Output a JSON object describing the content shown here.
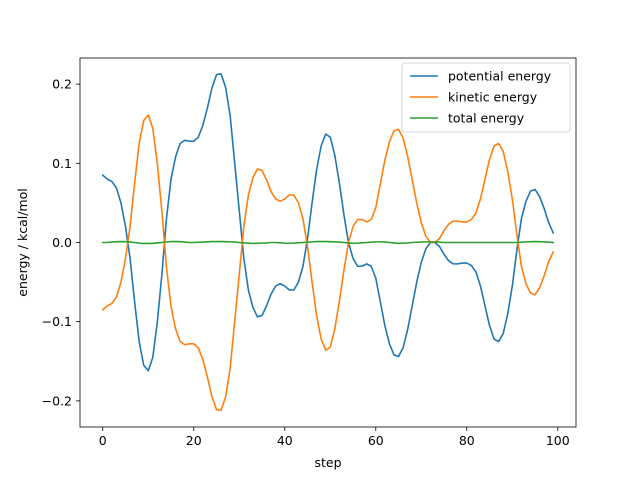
{
  "chart_data": {
    "type": "line",
    "title": "",
    "xlabel": "step",
    "ylabel": "energy / kcal/mol",
    "xlim": [
      -5,
      104
    ],
    "ylim": [
      -0.233,
      0.233
    ],
    "xticks": [
      0,
      20,
      40,
      60,
      80,
      100
    ],
    "yticks": [
      -0.2,
      -0.1,
      0.0,
      0.1,
      0.2
    ],
    "xtick_labels": [
      "0",
      "20",
      "40",
      "60",
      "80",
      "100"
    ],
    "ytick_labels": [
      "−0.2",
      "−0.1",
      "0.0",
      "0.1",
      "0.2"
    ],
    "grid": false,
    "legend_position": "top-right",
    "series": [
      {
        "name": "potential energy",
        "color": "#1f77b4",
        "x": [
          0,
          1,
          2,
          3,
          4,
          5,
          6,
          7,
          8,
          9,
          10,
          11,
          12,
          13,
          14,
          15,
          16,
          17,
          18,
          19,
          20,
          21,
          22,
          23,
          24,
          25,
          26,
          27,
          28,
          29,
          30,
          31,
          32,
          33,
          34,
          35,
          36,
          37,
          38,
          39,
          40,
          41,
          42,
          43,
          44,
          45,
          46,
          47,
          48,
          49,
          50,
          51,
          52,
          53,
          54,
          55,
          56,
          57,
          58,
          59,
          60,
          61,
          62,
          63,
          64,
          65,
          66,
          67,
          68,
          69,
          70,
          71,
          72,
          73,
          74,
          75,
          76,
          77,
          78,
          79,
          80,
          81,
          82,
          83,
          84,
          85,
          86,
          87,
          88,
          89,
          90,
          91,
          92,
          93,
          94,
          95,
          96,
          97,
          98,
          99
        ],
        "y": [
          0.085,
          0.08,
          0.077,
          0.069,
          0.05,
          0.02,
          -0.02,
          -0.075,
          -0.125,
          -0.155,
          -0.162,
          -0.145,
          -0.1,
          -0.04,
          0.03,
          0.08,
          0.108,
          0.125,
          0.129,
          0.128,
          0.128,
          0.133,
          0.148,
          0.17,
          0.195,
          0.212,
          0.213,
          0.196,
          0.16,
          0.1,
          0.04,
          -0.02,
          -0.06,
          -0.082,
          -0.094,
          -0.092,
          -0.08,
          -0.065,
          -0.055,
          -0.052,
          -0.055,
          -0.06,
          -0.06,
          -0.05,
          -0.03,
          0.005,
          0.05,
          0.092,
          0.122,
          0.137,
          0.133,
          0.11,
          0.075,
          0.035,
          0.0,
          -0.02,
          -0.03,
          -0.03,
          -0.027,
          -0.03,
          -0.045,
          -0.075,
          -0.105,
          -0.128,
          -0.142,
          -0.144,
          -0.133,
          -0.11,
          -0.08,
          -0.05,
          -0.025,
          -0.008,
          0.0,
          0.0,
          -0.005,
          -0.015,
          -0.023,
          -0.027,
          -0.027,
          -0.026,
          -0.026,
          -0.029,
          -0.037,
          -0.055,
          -0.08,
          -0.105,
          -0.122,
          -0.125,
          -0.115,
          -0.09,
          -0.055,
          -0.01,
          0.03,
          0.052,
          0.065,
          0.067,
          0.058,
          0.043,
          0.025,
          0.012
        ]
      },
      {
        "name": "kinetic energy",
        "color": "#ff7f0e",
        "x": [
          0,
          1,
          2,
          3,
          4,
          5,
          6,
          7,
          8,
          9,
          10,
          11,
          12,
          13,
          14,
          15,
          16,
          17,
          18,
          19,
          20,
          21,
          22,
          23,
          24,
          25,
          26,
          27,
          28,
          29,
          30,
          31,
          32,
          33,
          34,
          35,
          36,
          37,
          38,
          39,
          40,
          41,
          42,
          43,
          44,
          45,
          46,
          47,
          48,
          49,
          50,
          51,
          52,
          53,
          54,
          55,
          56,
          57,
          58,
          59,
          60,
          61,
          62,
          63,
          64,
          65,
          66,
          67,
          68,
          69,
          70,
          71,
          72,
          73,
          74,
          75,
          76,
          77,
          78,
          79,
          80,
          81,
          82,
          83,
          84,
          85,
          86,
          87,
          88,
          89,
          90,
          91,
          92,
          93,
          94,
          95,
          96,
          97,
          98,
          99
        ],
        "y": [
          -0.085,
          -0.08,
          -0.077,
          -0.069,
          -0.05,
          -0.02,
          0.02,
          0.075,
          0.125,
          0.154,
          0.161,
          0.144,
          0.099,
          0.039,
          -0.031,
          -0.081,
          -0.109,
          -0.125,
          -0.129,
          -0.128,
          -0.128,
          -0.133,
          -0.148,
          -0.17,
          -0.195,
          -0.211,
          -0.212,
          -0.195,
          -0.159,
          -0.099,
          -0.04,
          0.02,
          0.06,
          0.082,
          0.093,
          0.091,
          0.079,
          0.064,
          0.055,
          0.052,
          0.055,
          0.06,
          0.06,
          0.05,
          0.03,
          -0.005,
          -0.05,
          -0.092,
          -0.122,
          -0.136,
          -0.132,
          -0.109,
          -0.074,
          -0.035,
          0.0,
          0.02,
          0.029,
          0.029,
          0.026,
          0.029,
          0.044,
          0.074,
          0.104,
          0.127,
          0.141,
          0.143,
          0.132,
          0.109,
          0.079,
          0.05,
          0.025,
          0.008,
          0.0,
          0.0,
          0.005,
          0.015,
          0.023,
          0.027,
          0.027,
          0.026,
          0.026,
          0.029,
          0.037,
          0.055,
          0.08,
          0.105,
          0.122,
          0.125,
          0.115,
          0.09,
          0.055,
          0.01,
          -0.03,
          -0.052,
          -0.064,
          -0.066,
          -0.057,
          -0.042,
          -0.024,
          -0.012
        ]
      },
      {
        "name": "total energy",
        "color": "#2ca02c",
        "x": [
          0,
          1,
          2,
          3,
          4,
          5,
          6,
          7,
          8,
          9,
          10,
          11,
          12,
          13,
          14,
          15,
          16,
          17,
          18,
          19,
          20,
          21,
          22,
          23,
          24,
          25,
          26,
          27,
          28,
          29,
          30,
          31,
          32,
          33,
          34,
          35,
          36,
          37,
          38,
          39,
          40,
          41,
          42,
          43,
          44,
          45,
          46,
          47,
          48,
          49,
          50,
          51,
          52,
          53,
          54,
          55,
          56,
          57,
          58,
          59,
          60,
          61,
          62,
          63,
          64,
          65,
          66,
          67,
          68,
          69,
          70,
          71,
          72,
          73,
          74,
          75,
          76,
          77,
          78,
          79,
          80,
          81,
          82,
          83,
          84,
          85,
          86,
          87,
          88,
          89,
          90,
          91,
          92,
          93,
          94,
          95,
          96,
          97,
          98,
          99
        ],
        "y": [
          0.0,
          0.0,
          0.0005,
          0.001,
          0.0012,
          0.001,
          0.0005,
          0.0,
          -0.0008,
          -0.0012,
          -0.0012,
          -0.001,
          -0.0005,
          0.0,
          0.0008,
          0.0012,
          0.0012,
          0.001,
          0.0005,
          0.0,
          0.0,
          0.0003,
          0.0006,
          0.0009,
          0.0012,
          0.0012,
          0.0012,
          0.001,
          0.0008,
          0.0005,
          0.0,
          -0.0005,
          -0.0009,
          -0.0012,
          -0.001,
          -0.0008,
          -0.0005,
          0.0,
          0.0,
          -0.0004,
          -0.0008,
          -0.001,
          -0.0008,
          -0.0004,
          0.0,
          0.0004,
          0.0008,
          0.0012,
          0.0012,
          0.0012,
          0.001,
          0.0008,
          0.0005,
          0.0,
          -0.0005,
          -0.001,
          -0.0008,
          -0.0004,
          0.0,
          0.0004,
          0.0008,
          0.0008,
          0.0005,
          0.0,
          -0.0005,
          -0.001,
          -0.0008,
          -0.0005,
          0.0,
          0.0003,
          0.0005,
          0.0008,
          0.0008,
          0.0008,
          0.0005,
          0.0,
          0.0,
          0.0,
          0.0,
          0.0,
          0.0,
          0.0,
          0.0,
          0.0,
          0.0,
          0.0,
          0.0,
          0.0,
          0.0,
          0.0,
          0.0,
          0.0,
          0.0004,
          0.0008,
          0.001,
          0.0012,
          0.001,
          0.0008,
          0.0004,
          0.0
        ]
      }
    ]
  }
}
